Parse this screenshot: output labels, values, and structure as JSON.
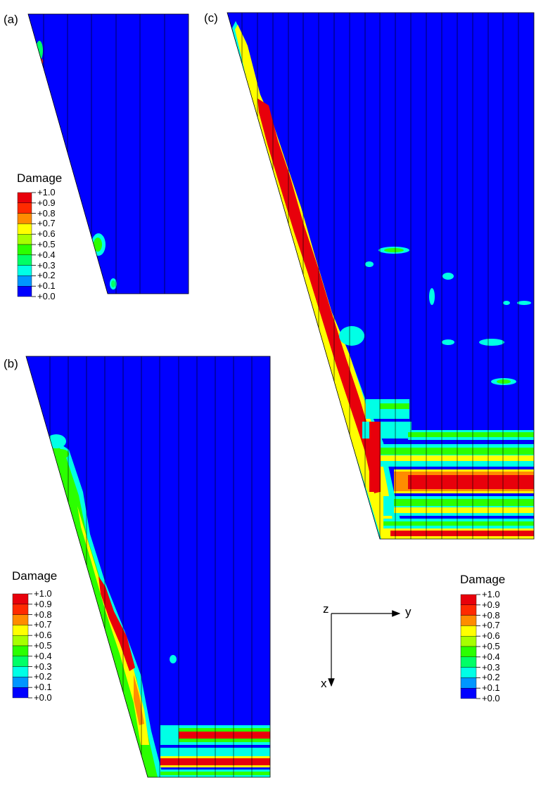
{
  "panels": [
    {
      "label": "(a)"
    },
    {
      "label": "(b)"
    },
    {
      "label": "(c)"
    }
  ],
  "legend": {
    "title": "Damage",
    "values": [
      "+1.0",
      "+0.9",
      "+0.8",
      "+0.7",
      "+0.6",
      "+0.5",
      "+0.4",
      "+0.3",
      "+0.2",
      "+0.1",
      "+0.0"
    ],
    "colors": [
      "#e8000b",
      "#ff2a00",
      "#ff8c00",
      "#ffff00",
      "#a6ff00",
      "#2bff00",
      "#00ff66",
      "#00ffe6",
      "#0096ff",
      "#0000ff"
    ]
  },
  "axes": {
    "x": "x",
    "y": "y",
    "z": "z"
  }
}
